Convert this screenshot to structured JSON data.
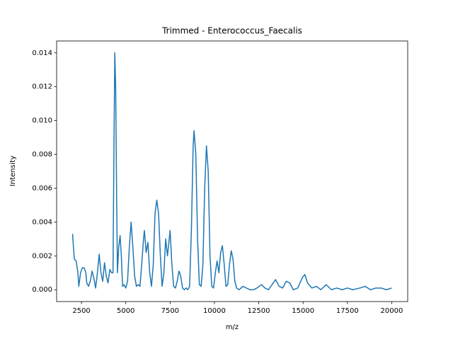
{
  "chart_data": {
    "type": "line",
    "title": "Trimmed - Enterococcus_Faecalis",
    "xlabel": "m/z",
    "ylabel": "Intensity",
    "x": [
      2000,
      2050,
      2100,
      2200,
      2300,
      2350,
      2450,
      2550,
      2650,
      2750,
      2800,
      2900,
      3000,
      3100,
      3200,
      3300,
      3400,
      3500,
      3600,
      3700,
      3800,
      3900,
      4000,
      4100,
      4200,
      4280,
      4330,
      4380,
      4430,
      4480,
      4530,
      4600,
      4680,
      4750,
      4820,
      4900,
      5000,
      5100,
      5200,
      5300,
      5400,
      5500,
      5600,
      5700,
      5800,
      5900,
      6000,
      6050,
      6150,
      6250,
      6350,
      6450,
      6550,
      6650,
      6750,
      6850,
      6950,
      7050,
      7150,
      7250,
      7350,
      7500,
      7600,
      7700,
      7800,
      7900,
      8000,
      8100,
      8200,
      8300,
      8400,
      8500,
      8600,
      8700,
      8800,
      8850,
      8950,
      9050,
      9150,
      9250,
      9350,
      9450,
      9550,
      9650,
      9750,
      9850,
      9950,
      10050,
      10150,
      10250,
      10350,
      10450,
      10550,
      10650,
      10750,
      10850,
      10950,
      11050,
      11150,
      11250,
      11400,
      11600,
      11800,
      12000,
      12200,
      12400,
      12650,
      12850,
      13050,
      13250,
      13450,
      13650,
      13850,
      14050,
      14250,
      14450,
      14700,
      14950,
      15100,
      15250,
      15500,
      15750,
      16000,
      16300,
      16600,
      16900,
      17200,
      17500,
      17800,
      18200,
      18500,
      18800,
      19100,
      19400,
      19700,
      20000
    ],
    "series": [
      {
        "name": "Trimmed - Enterococcus_Faecalis",
        "color": "#1f77b4",
        "values": [
          0.0033,
          0.0025,
          0.0018,
          0.0017,
          0.001,
          0.0002,
          0.001,
          0.0013,
          0.0013,
          0.001,
          0.0004,
          0.0002,
          0.0005,
          0.0011,
          0.0007,
          0.0001,
          0.001,
          0.0021,
          0.001,
          0.0005,
          0.0016,
          0.0008,
          0.0004,
          0.0012,
          0.001,
          0.001,
          0.008,
          0.014,
          0.012,
          0.006,
          0.001,
          0.0025,
          0.0032,
          0.002,
          0.0002,
          0.0003,
          0.0001,
          0.0005,
          0.0025,
          0.004,
          0.0025,
          0.0008,
          0.0002,
          0.0003,
          0.0002,
          0.0015,
          0.003,
          0.0035,
          0.0022,
          0.0028,
          0.001,
          0.0002,
          0.0015,
          0.0045,
          0.0053,
          0.0045,
          0.002,
          0.0002,
          0.001,
          0.003,
          0.002,
          0.0035,
          0.0015,
          0.0002,
          0.0001,
          0.0005,
          0.0011,
          0.0008,
          0.0001,
          0.0,
          0.0001,
          0.0,
          0.0002,
          0.0035,
          0.0085,
          0.0094,
          0.008,
          0.003,
          0.0003,
          0.0002,
          0.0015,
          0.006,
          0.0085,
          0.007,
          0.002,
          0.0002,
          0.0001,
          0.001,
          0.0017,
          0.001,
          0.0022,
          0.0026,
          0.0015,
          0.0002,
          0.0003,
          0.0015,
          0.0023,
          0.0018,
          0.0005,
          0.0001,
          0.0,
          0.0002,
          0.0001,
          0.0,
          0.0,
          0.0001,
          0.0003,
          0.0001,
          0.0,
          0.0003,
          0.0006,
          0.0002,
          0.0001,
          0.0005,
          0.0004,
          0.0,
          0.0001,
          0.0007,
          0.0009,
          0.0004,
          0.0001,
          0.0002,
          0.0,
          0.0003,
          0.0,
          0.0001,
          0.0,
          0.0001,
          0.0,
          0.0001,
          0.0002,
          0.0,
          0.0001,
          0.0001,
          0.0,
          0.0001
        ]
      }
    ],
    "xlim": [
      1100,
      20900
    ],
    "xticks": [
      2500,
      5000,
      7500,
      10000,
      12500,
      15000,
      17500,
      20000
    ],
    "ylim": [
      -0.0007,
      0.0147
    ],
    "yticks": [
      {
        "value": 0,
        "label": "0.000"
      },
      {
        "value": 0.002,
        "label": "0.002"
      },
      {
        "value": 0.004,
        "label": "0.004"
      },
      {
        "value": 0.006,
        "label": "0.006"
      },
      {
        "value": 0.008,
        "label": "0.008"
      },
      {
        "value": 0.01,
        "label": "0.010"
      },
      {
        "value": 0.012,
        "label": "0.012"
      },
      {
        "value": 0.014,
        "label": "0.014"
      }
    ]
  }
}
